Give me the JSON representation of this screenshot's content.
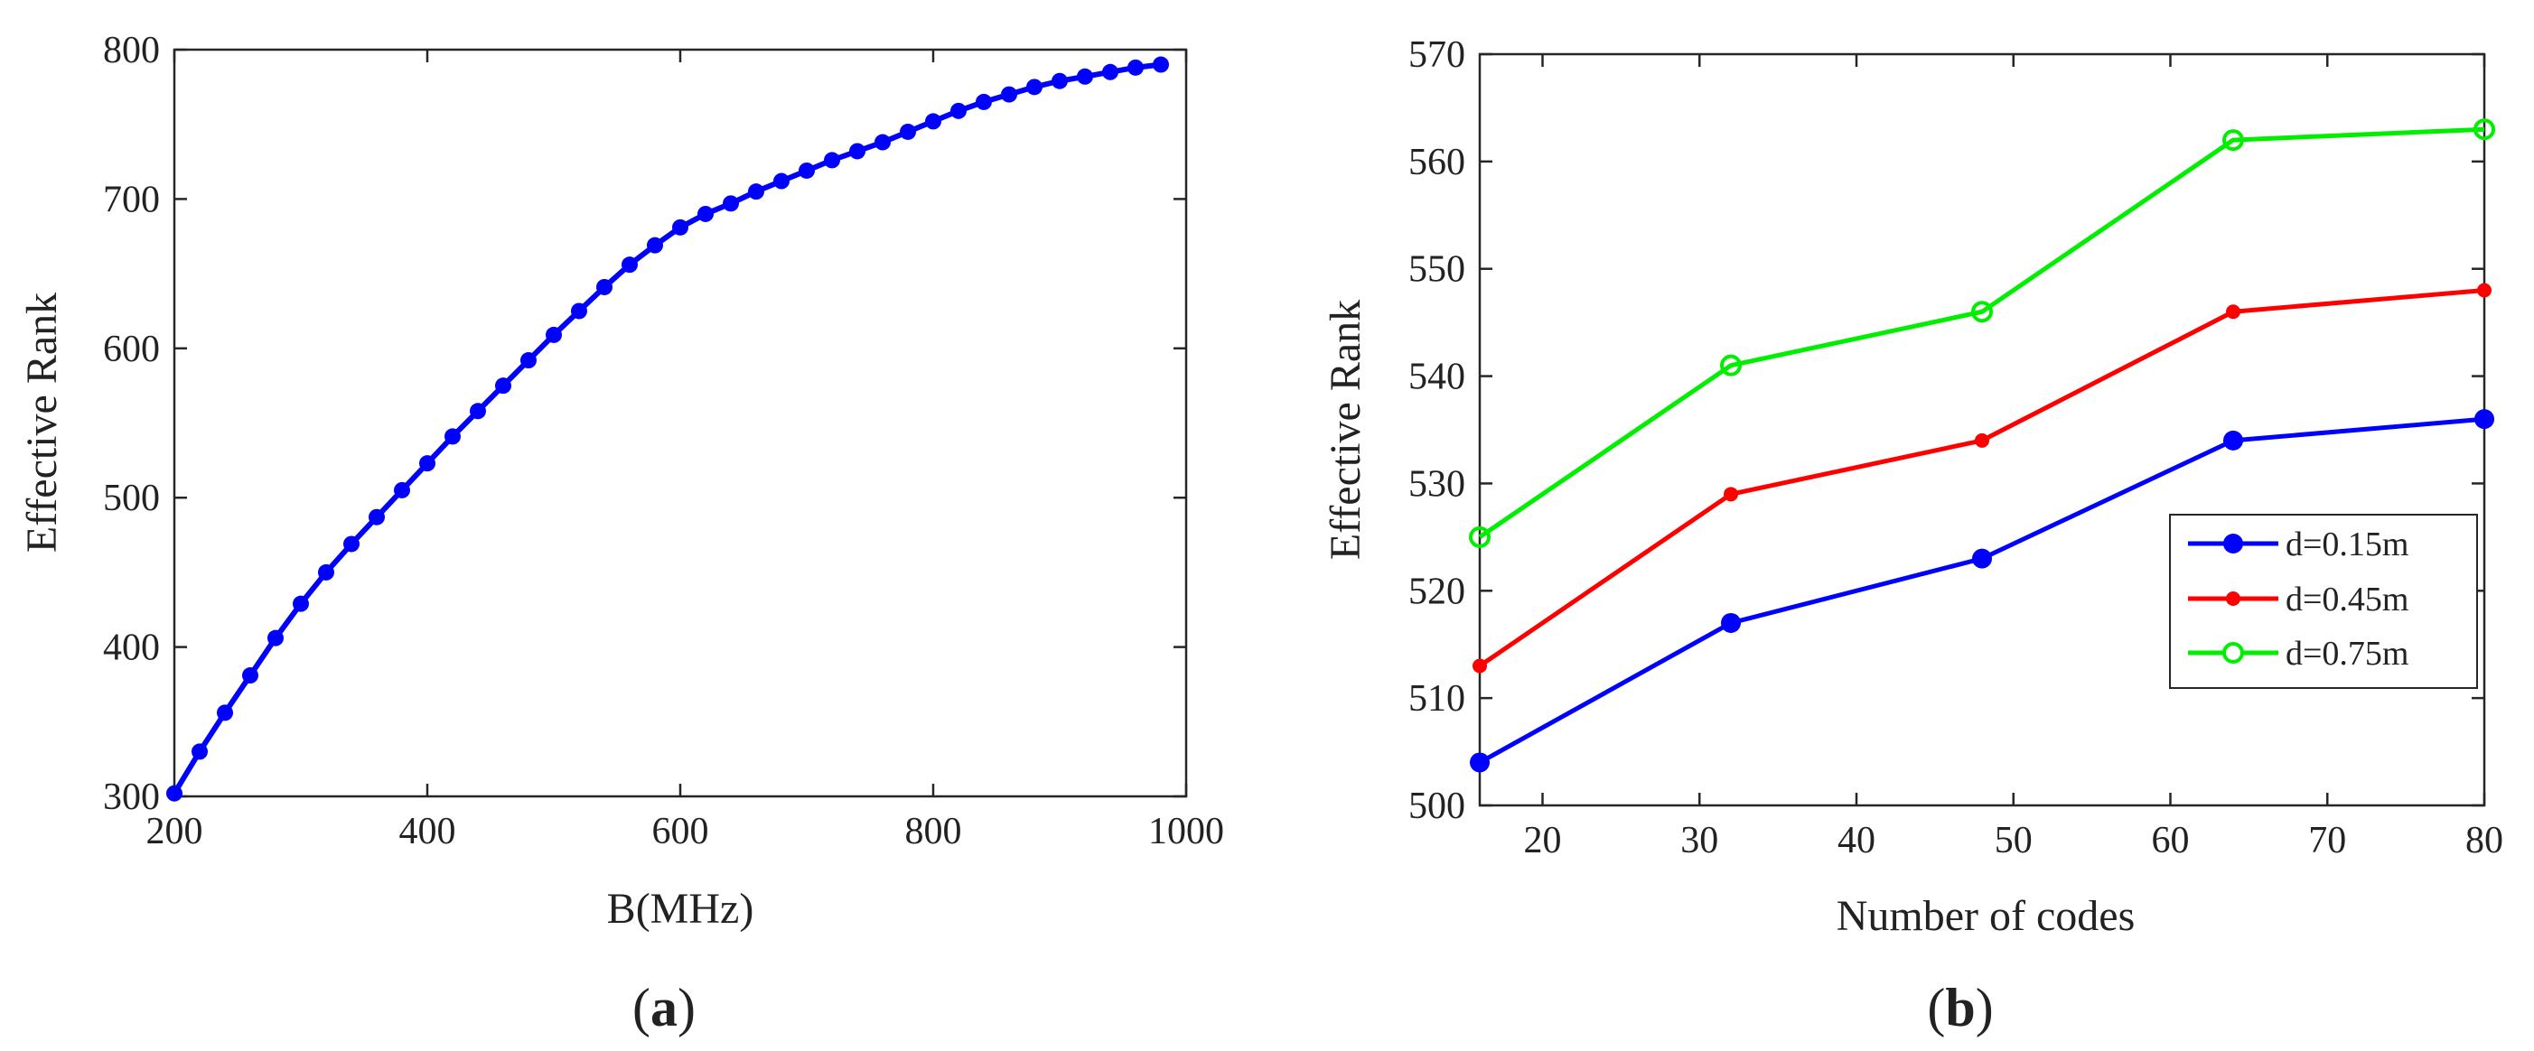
{
  "chart_data": [
    {
      "panel_label": "a",
      "type": "line",
      "title": "",
      "xlabel": "B(MHz)",
      "ylabel": "Effective Rank",
      "xlim": [
        200,
        1000
      ],
      "ylim": [
        300,
        800
      ],
      "xticks": [
        200,
        400,
        600,
        800,
        1000
      ],
      "yticks": [
        300,
        400,
        500,
        600,
        700,
        800
      ],
      "grid": false,
      "series": [
        {
          "name": "Effective Rank",
          "color": "#0000ff",
          "marker": "filled-dot",
          "x": [
            200,
            220,
            240,
            260,
            280,
            300,
            320,
            340,
            360,
            380,
            400,
            420,
            440,
            460,
            480,
            500,
            520,
            540,
            560,
            580,
            600,
            620,
            640,
            660,
            680,
            700,
            720,
            740,
            760,
            780,
            800,
            820,
            840,
            860,
            880,
            900,
            920,
            940,
            960,
            980
          ],
          "y": [
            302,
            330,
            356,
            381,
            406,
            429,
            450,
            469,
            487,
            505,
            523,
            541,
            558,
            575,
            592,
            609,
            625,
            641,
            656,
            669,
            681,
            690,
            697,
            705,
            712,
            719,
            726,
            732,
            738,
            745,
            752,
            759,
            765,
            770,
            775,
            779,
            782,
            785,
            788,
            790
          ]
        }
      ]
    },
    {
      "panel_label": "b",
      "type": "line",
      "title": "",
      "xlabel": "Number of codes",
      "ylabel": "Effective Rank",
      "xlim": [
        16,
        80
      ],
      "ylim": [
        500,
        570
      ],
      "xticks": [
        20,
        30,
        40,
        50,
        60,
        70,
        80
      ],
      "yticks": [
        500,
        510,
        520,
        530,
        540,
        550,
        560,
        570
      ],
      "grid": false,
      "legend": "right",
      "x": [
        16,
        32,
        48,
        64,
        80
      ],
      "series": [
        {
          "name": "d=0.15m",
          "color": "#0000ff",
          "marker": "filled-circle",
          "values": [
            504,
            517,
            523,
            534,
            536
          ]
        },
        {
          "name": "d=0.45m",
          "color": "#ff0000",
          "marker": "filled-dot",
          "values": [
            513,
            529,
            534,
            546,
            548
          ]
        },
        {
          "name": "d=0.75m",
          "color": "#00ee00",
          "marker": "open-circle",
          "values": [
            525,
            541,
            546,
            562,
            563
          ]
        }
      ]
    }
  ]
}
